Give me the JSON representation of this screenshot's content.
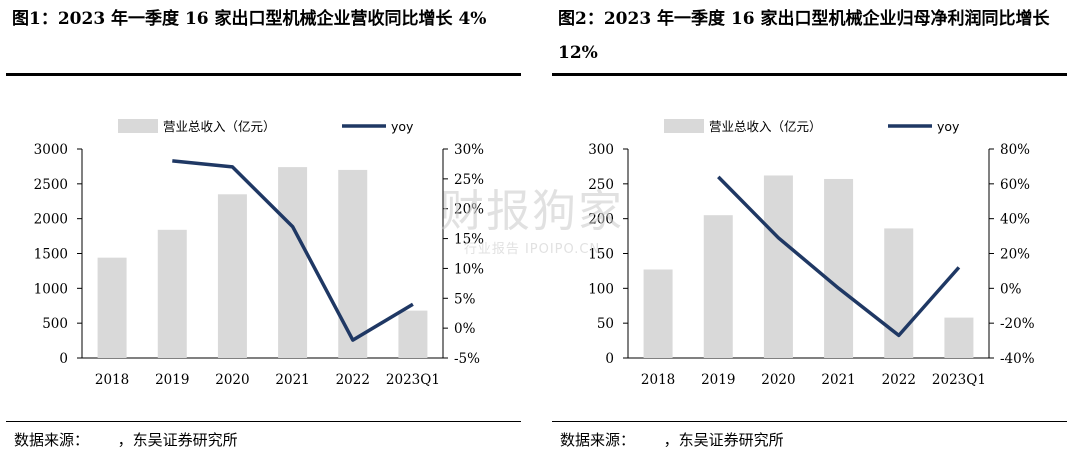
{
  "left": {
    "title": "图1：2023 年一季度 16 家出口型机械企业营收同比增长 4%",
    "source_label": "数据来源：",
    "source_text": "，东吴证券研究所"
  },
  "right": {
    "title": "图2：2023 年一季度 16 家出口型机械企业归母净利润同比增长 12%",
    "source_label": "数据来源：",
    "source_text": "，东吴证券研究所"
  },
  "watermark": {
    "main": "财报狗家",
    "sub": "行业报告 IPOIPO.CN"
  },
  "colors": {
    "bar": "#d9d9d9",
    "line": "#1f3864"
  },
  "chart_data": [
    {
      "type": "bar",
      "categories": [
        "2018",
        "2019",
        "2020",
        "2021",
        "2022",
        "2023Q1"
      ],
      "series": [
        {
          "name": "营业总收入（亿元）",
          "type": "bar",
          "axis": "left",
          "values": [
            1440,
            1840,
            2350,
            2740,
            2700,
            680
          ]
        },
        {
          "name": "yoy",
          "type": "line",
          "axis": "right",
          "values": [
            null,
            28,
            27,
            17,
            -2,
            4
          ]
        }
      ],
      "ylim": [
        0,
        3000
      ],
      "yticks": [
        "0",
        "500",
        "1000",
        "1500",
        "2000",
        "2500",
        "3000"
      ],
      "y2lim": [
        -5,
        30
      ],
      "y2ticks": [
        "-5%",
        "0%",
        "5%",
        "10%",
        "15%",
        "20%",
        "25%",
        "30%"
      ],
      "legend_position": "top-center",
      "grid": false
    },
    {
      "type": "bar",
      "categories": [
        "2018",
        "2019",
        "2020",
        "2021",
        "2022",
        "2023Q1"
      ],
      "series": [
        {
          "name": "营业总收入（亿元）",
          "type": "bar",
          "axis": "left",
          "values": [
            127,
            205,
            262,
            257,
            186,
            58
          ]
        },
        {
          "name": "yoy",
          "type": "line",
          "axis": "right",
          "values": [
            null,
            64,
            29,
            0,
            -27,
            12
          ]
        }
      ],
      "ylim": [
        0,
        300
      ],
      "yticks": [
        "0",
        "50",
        "100",
        "150",
        "200",
        "250",
        "300"
      ],
      "y2lim": [
        -40,
        80
      ],
      "y2ticks": [
        "-40%",
        "-20%",
        "0%",
        "20%",
        "40%",
        "60%",
        "80%"
      ],
      "legend_position": "top-center",
      "grid": false
    }
  ]
}
